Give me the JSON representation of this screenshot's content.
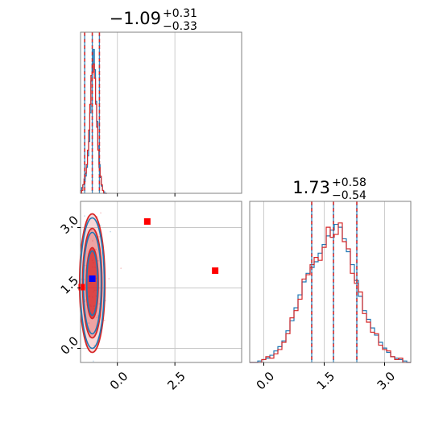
{
  "colors": {
    "series_a": "#1f77b4",
    "series_b": "#d62728",
    "marker_blue": "#0000ff",
    "marker_red": "#ff0000",
    "axis_frame": "#808080",
    "grid": "#c8c8c8"
  },
  "chart_data": [
    {
      "type": "histogram",
      "panel": "top-left",
      "title": {
        "value": "−1.09",
        "plus": "+0.31",
        "minus": "−0.33"
      },
      "xlim": [
        -1.6,
        5.4
      ],
      "ylim": [
        0,
        1.12
      ],
      "grid": true,
      "x_ticks": [
        0.0,
        2.5
      ],
      "quantiles": [
        -1.42,
        -1.09,
        -0.78
      ],
      "bin_edges": [
        -1.6,
        -1.55,
        -1.5,
        -1.45,
        -1.4,
        -1.35,
        -1.3,
        -1.25,
        -1.2,
        -1.15,
        -1.1,
        -1.05,
        -1.0,
        -0.95,
        -0.9,
        -0.85,
        -0.8,
        -0.75,
        -0.7,
        -0.65,
        -0.6,
        -0.55,
        -0.5,
        -0.45
      ],
      "series": [
        {
          "values": [
            0.02,
            0.04,
            0.06,
            0.08,
            0.12,
            0.18,
            0.26,
            0.36,
            0.56,
            0.78,
            0.9,
            1.0,
            0.86,
            0.64,
            0.5,
            0.33,
            0.2,
            0.11,
            0.05,
            0.02,
            0.01,
            0.0,
            0.0
          ]
        },
        {
          "values": [
            0.0,
            0.02,
            0.06,
            0.1,
            0.14,
            0.2,
            0.3,
            0.44,
            0.62,
            0.82,
            0.84,
            0.9,
            0.8,
            0.62,
            0.46,
            0.3,
            0.18,
            0.12,
            0.06,
            0.02,
            0.0,
            0.0,
            0.0
          ]
        }
      ]
    },
    {
      "type": "contour",
      "panel": "bottom-left",
      "xlim": [
        -1.6,
        5.4
      ],
      "ylim": [
        -0.35,
        3.65
      ],
      "grid": true,
      "x_ticks": [
        0.0,
        2.5
      ],
      "x_tick_labels": [
        "0.0",
        "2.5"
      ],
      "y_ticks": [
        0.0,
        1.5,
        3.0
      ],
      "y_tick_labels": [
        "0.0",
        "1.5",
        "3.0"
      ],
      "contour_center": [
        -1.09,
        1.62
      ],
      "contour_levels": [
        {
          "series": "b",
          "radii": [
            0.55,
            1.72
          ]
        },
        {
          "series": "a",
          "radii": [
            0.52,
            1.62
          ]
        },
        {
          "series": "b",
          "radii": [
            0.42,
            1.36
          ]
        },
        {
          "series": "a",
          "radii": [
            0.39,
            1.26
          ]
        },
        {
          "series": "b",
          "radii": [
            0.26,
            0.88
          ]
        },
        {
          "series": "a",
          "radii": [
            0.24,
            0.8
          ]
        }
      ],
      "markers": [
        {
          "x": -1.09,
          "y": 1.73,
          "color": "blue"
        },
        {
          "x": -1.55,
          "y": 1.52,
          "color": "red"
        },
        {
          "x": 1.3,
          "y": 3.15,
          "color": "red"
        },
        {
          "x": 4.25,
          "y": 1.93,
          "color": "red"
        }
      ]
    },
    {
      "type": "histogram",
      "panel": "bottom-right",
      "title": {
        "value": "1.73",
        "plus": "+0.58",
        "minus": "−0.54"
      },
      "xlim": [
        -0.35,
        3.65
      ],
      "ylim": [
        0,
        1.12
      ],
      "grid": true,
      "x_ticks": [
        0.0,
        1.5,
        3.0
      ],
      "x_tick_labels": [
        "0.0",
        "1.5",
        "3.0"
      ],
      "quantiles": [
        1.19,
        1.73,
        2.31
      ],
      "bin_edges": [
        -0.35,
        -0.25,
        -0.15,
        -0.05,
        0.05,
        0.15,
        0.25,
        0.35,
        0.45,
        0.55,
        0.65,
        0.75,
        0.85,
        0.95,
        1.05,
        1.15,
        1.25,
        1.35,
        1.45,
        1.55,
        1.65,
        1.75,
        1.85,
        1.95,
        2.05,
        2.15,
        2.25,
        2.35,
        2.45,
        2.55,
        2.65,
        2.75,
        2.85,
        2.95,
        3.05,
        3.15,
        3.25,
        3.35,
        3.45,
        3.55,
        3.65
      ],
      "series": [
        {
          "values": [
            0.0,
            0.0,
            0.01,
            0.02,
            0.03,
            0.05,
            0.08,
            0.11,
            0.15,
            0.22,
            0.29,
            0.38,
            0.47,
            0.56,
            0.62,
            0.66,
            0.7,
            0.76,
            0.82,
            0.88,
            0.92,
            0.96,
            0.94,
            0.86,
            0.77,
            0.68,
            0.57,
            0.46,
            0.36,
            0.3,
            0.24,
            0.19,
            0.14,
            0.1,
            0.07,
            0.04,
            0.03,
            0.02,
            0.01,
            0.0
          ]
        },
        {
          "values": [
            0.0,
            0.0,
            0.0,
            0.02,
            0.04,
            0.03,
            0.06,
            0.09,
            0.14,
            0.2,
            0.31,
            0.36,
            0.44,
            0.58,
            0.61,
            0.68,
            0.73,
            0.71,
            0.8,
            0.94,
            0.87,
            0.89,
            0.97,
            0.84,
            0.79,
            0.62,
            0.55,
            0.49,
            0.34,
            0.28,
            0.21,
            0.2,
            0.12,
            0.09,
            0.08,
            0.04,
            0.02,
            0.03,
            0.0,
            0.0
          ]
        }
      ]
    }
  ]
}
